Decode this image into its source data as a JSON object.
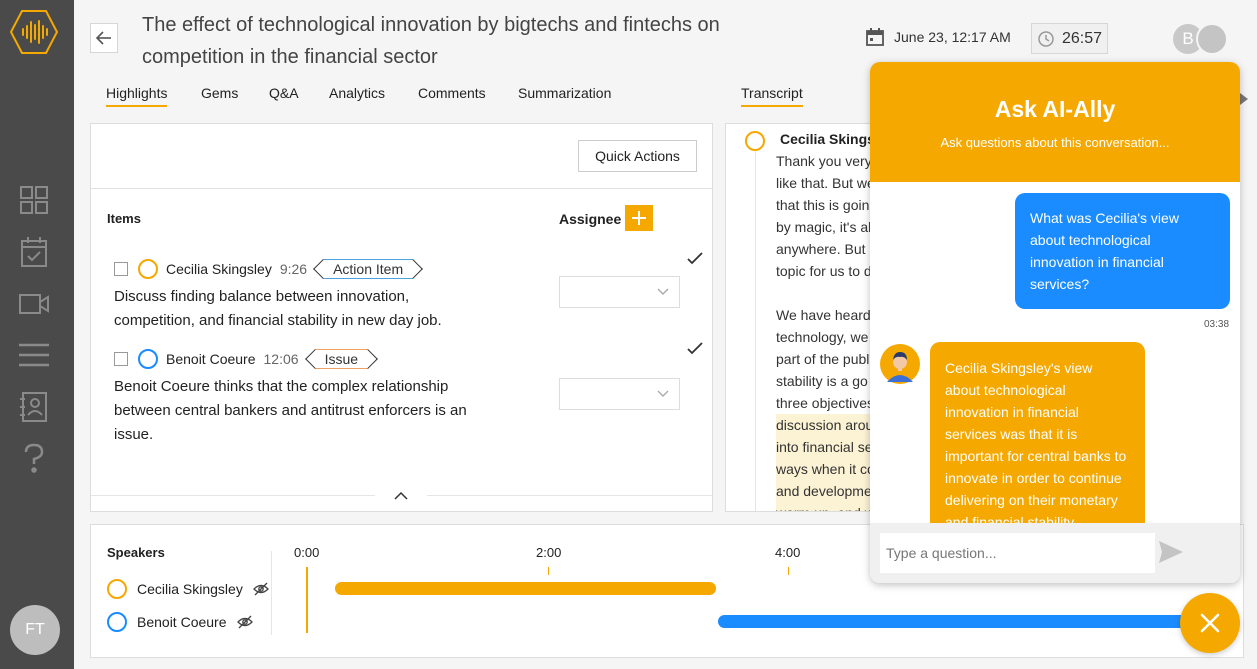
{
  "header": {
    "title": "The effect of technological innovation by bigtechs and fintechs on competition in the financial sector",
    "date": "June 23, 12:17 AM",
    "timer": "26:57",
    "user_initial": "B"
  },
  "sidebar": {
    "items": [
      {
        "icon": "grid-icon"
      },
      {
        "icon": "calendar-check-icon"
      },
      {
        "icon": "video-icon"
      },
      {
        "icon": "menu-lines-icon"
      },
      {
        "icon": "contacts-icon"
      },
      {
        "icon": "help-icon"
      }
    ],
    "user_initials": "FT"
  },
  "tabs": {
    "highlights": "Highlights",
    "gems": "Gems",
    "qa": "Q&A",
    "analytics": "Analytics",
    "comments": "Comments",
    "summarization": "Summarization",
    "transcript": "Transcript"
  },
  "highlights": {
    "quick_actions": "Quick Actions",
    "items_header": "Items",
    "assignee_header": "Assignee",
    "items": [
      {
        "speaker": "Cecilia Skingsley",
        "time": "9:26",
        "tag": "Action Item",
        "text": "Discuss finding balance between innovation, competition, and financial stability in new day job."
      },
      {
        "speaker": "Benoit Coeure",
        "time": "12:06",
        "tag": "Issue",
        "text": "Benoit Coeure thinks that the complex relationship between central bankers and antitrust enforcers is an issue."
      }
    ]
  },
  "transcript": {
    "speaker": "Cecilia Skingsley",
    "lines_1": [
      "Thank you very",
      "like that. But we",
      "that this is going",
      "by magic, it's al",
      "anywhere. But l",
      "topic for us to d"
    ],
    "lines_2": [
      "We have heard",
      "technology, we",
      "part of the publ",
      "stability is a go",
      "three objectives"
    ],
    "lines_3": [
      "discussion arou",
      "into financial se",
      "ways when it co",
      "and developme",
      "warm up, and w"
    ]
  },
  "speakers": {
    "title": "Speakers",
    "list": [
      {
        "name": "Cecilia Skingsley",
        "color": "#f5a800"
      },
      {
        "name": "Benoit Coeure",
        "color": "#1a8cff"
      }
    ],
    "timeline_labels": [
      "0:00",
      "2:00",
      "4:00"
    ]
  },
  "chat": {
    "title": "Ask AI-Ally",
    "subtitle": "Ask questions about this conversation...",
    "user_message": "What was Cecilia's view about technological innovation in financial services?",
    "user_time": "03:38",
    "bot_message": "Cecilia Skingsley's view about technological innovation in financial services was that it is important for central banks to innovate in order to continue delivering on their monetary and financial stability objectives. She",
    "input_placeholder": "Type a question..."
  }
}
